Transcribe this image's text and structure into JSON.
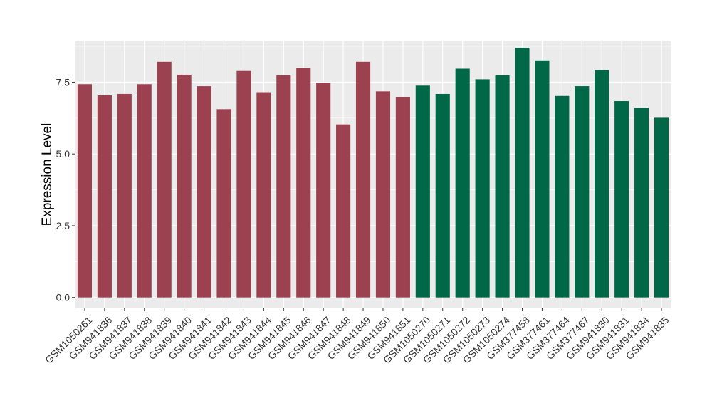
{
  "chart_data": {
    "type": "bar",
    "ylabel": "Expression Level",
    "xlabel": "",
    "ylim": [
      -0.38,
      8.95
    ],
    "yticks": [
      0.0,
      2.5,
      5.0,
      7.5
    ],
    "ytick_labels": [
      "0.0",
      "2.5",
      "5.0",
      "7.5"
    ],
    "grid": true,
    "colors": {
      "group1": "#9B4150",
      "group2": "#006847",
      "panel": "#EBEBEB",
      "grid": "#FFFFFF"
    },
    "categories": [
      "GSM1050261",
      "GSM941836",
      "GSM941837",
      "GSM941838",
      "GSM941839",
      "GSM941840",
      "GSM941841",
      "GSM941842",
      "GSM941843",
      "GSM941844",
      "GSM941845",
      "GSM941846",
      "GSM941847",
      "GSM941848",
      "GSM941849",
      "GSM941850",
      "GSM941851",
      "GSM1050270",
      "GSM1050271",
      "GSM1050272",
      "GSM1050273",
      "GSM1050274",
      "GSM377458",
      "GSM377461",
      "GSM377464",
      "GSM377467",
      "GSM941830",
      "GSM941831",
      "GSM941834",
      "GSM941835"
    ],
    "values": [
      7.43,
      7.04,
      7.09,
      7.43,
      8.21,
      7.76,
      7.36,
      6.56,
      7.89,
      7.15,
      7.74,
      7.99,
      7.48,
      6.03,
      8.21,
      7.18,
      6.99,
      7.38,
      7.09,
      7.97,
      7.6,
      7.74,
      8.7,
      8.26,
      7.02,
      7.36,
      7.92,
      6.84,
      6.61,
      6.26
    ],
    "groups": [
      1,
      1,
      1,
      1,
      1,
      1,
      1,
      1,
      1,
      1,
      1,
      1,
      1,
      1,
      1,
      1,
      1,
      2,
      2,
      2,
      2,
      2,
      2,
      2,
      2,
      2,
      2,
      2,
      2,
      2
    ]
  }
}
